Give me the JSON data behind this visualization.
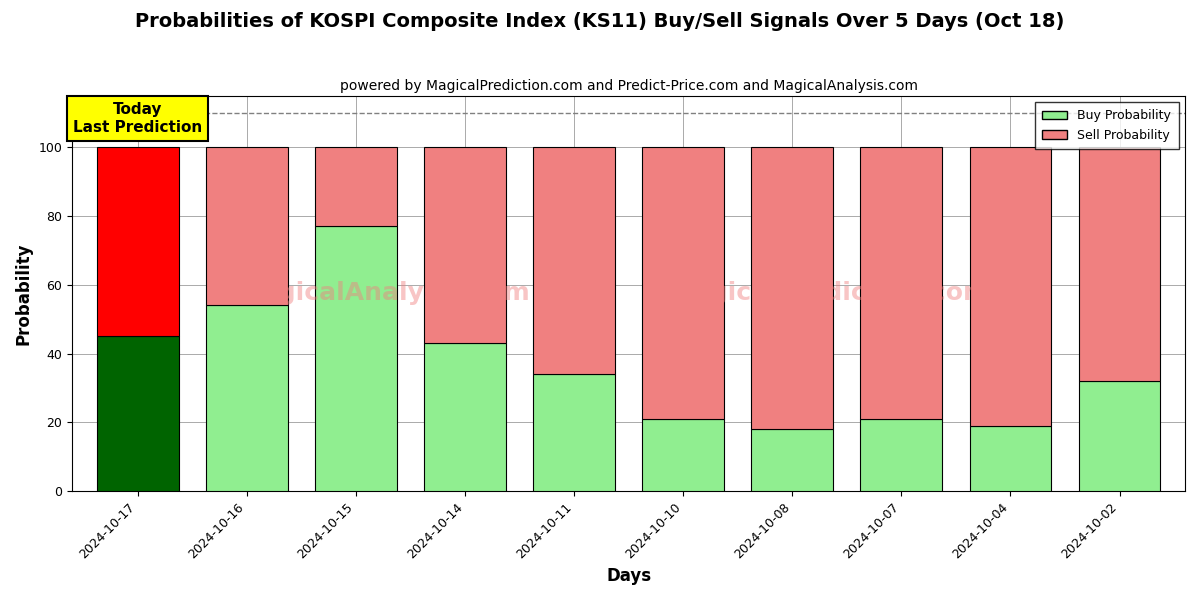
{
  "title": "Probabilities of KOSPI Composite Index (KS11) Buy/Sell Signals Over 5 Days (Oct 18)",
  "subtitle": "powered by MagicalPrediction.com and Predict-Price.com and MagicalAnalysis.com",
  "xlabel": "Days",
  "ylabel": "Probability",
  "categories": [
    "2024-10-17",
    "2024-10-16",
    "2024-10-15",
    "2024-10-14",
    "2024-10-11",
    "2024-10-10",
    "2024-10-08",
    "2024-10-07",
    "2024-10-04",
    "2024-10-02"
  ],
  "buy_values": [
    45,
    54,
    77,
    43,
    34,
    21,
    18,
    21,
    19,
    32
  ],
  "sell_values": [
    55,
    46,
    23,
    57,
    66,
    79,
    82,
    79,
    81,
    68
  ],
  "today_bar_buy_color": "#006400",
  "today_bar_sell_color": "#FF0000",
  "other_bar_buy_color": "#90EE90",
  "other_bar_sell_color": "#F08080",
  "bar_edge_color": "#000000",
  "legend_buy_color": "#90EE90",
  "legend_sell_color": "#F08080",
  "watermark_text1": "MagicalAnalysis.com",
  "watermark_text2": "MagicalPrediction.com",
  "annotation_text": "Today\nLast Prediction",
  "annotation_bg": "#FFFF00",
  "dashed_line_y": 110,
  "ylim": [
    0,
    115
  ],
  "grid_color": "#AAAAAA",
  "background_color": "#FFFFFF",
  "title_fontsize": 14,
  "subtitle_fontsize": 10,
  "axis_label_fontsize": 12,
  "tick_fontsize": 9
}
